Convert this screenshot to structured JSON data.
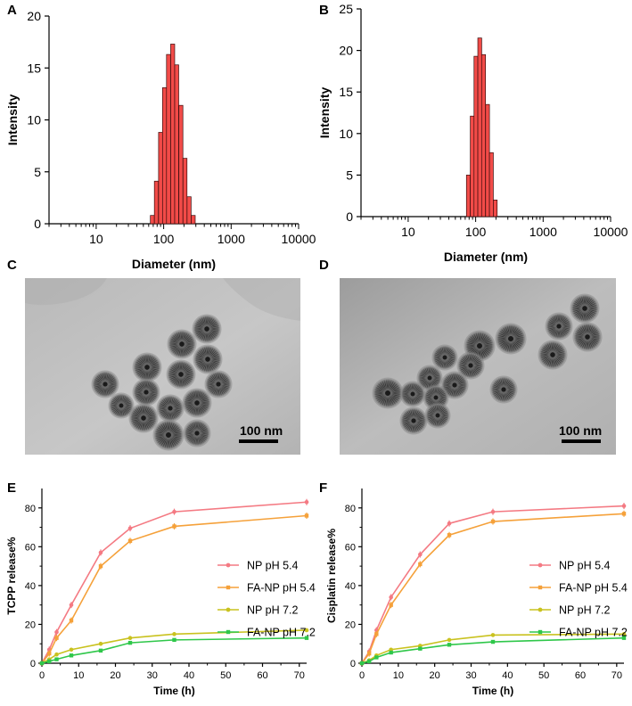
{
  "panels": {
    "A": "A",
    "B": "B",
    "C": "C",
    "D": "D",
    "E": "E",
    "F": "F"
  },
  "tem": {
    "C": {
      "scale_bar_label": "100 nm"
    },
    "D": {
      "scale_bar_label": "100 nm"
    }
  },
  "colors": {
    "bar_fill": "#f24b48",
    "bar_stroke": "#3a0c0c",
    "np_54": "#f47a83",
    "fa_np_54": "#f5a13a",
    "np_72": "#c9c21f",
    "fa_np_72": "#2fc74a"
  },
  "chart_data": [
    {
      "panel": "A",
      "type": "bar",
      "xscale": "log",
      "xlabel": "Diameter (nm)",
      "ylabel": "Intensity",
      "xlim": [
        2,
        10000
      ],
      "ylim": [
        0,
        20
      ],
      "xticks": [
        "10",
        "100",
        "1000",
        "10000"
      ],
      "yticks": [
        "0",
        "5",
        "10",
        "15",
        "20"
      ],
      "bins": [
        {
          "x": 68,
          "y": 0.8
        },
        {
          "x": 78,
          "y": 4.1
        },
        {
          "x": 90,
          "y": 8.8
        },
        {
          "x": 103,
          "y": 13.1
        },
        {
          "x": 118,
          "y": 16.3
        },
        {
          "x": 136,
          "y": 17.3
        },
        {
          "x": 156,
          "y": 15.3
        },
        {
          "x": 180,
          "y": 11.4
        },
        {
          "x": 207,
          "y": 6.3
        },
        {
          "x": 238,
          "y": 2.6
        },
        {
          "x": 274,
          "y": 0.8
        }
      ]
    },
    {
      "panel": "B",
      "type": "bar",
      "xscale": "log",
      "xlabel": "Diameter (nm)",
      "ylabel": "Intensity",
      "xlim": [
        2,
        10000
      ],
      "ylim": [
        0,
        25
      ],
      "xticks": [
        "10",
        "100",
        "1000",
        "10000"
      ],
      "yticks": [
        "0",
        "5",
        "10",
        "15",
        "20",
        "25"
      ],
      "bins": [
        {
          "x": 78,
          "y": 5.0
        },
        {
          "x": 89,
          "y": 12.1
        },
        {
          "x": 101,
          "y": 19.3
        },
        {
          "x": 115,
          "y": 21.5
        },
        {
          "x": 131,
          "y": 19.5
        },
        {
          "x": 150,
          "y": 13.5
        },
        {
          "x": 171,
          "y": 7.7
        },
        {
          "x": 195,
          "y": 2.0
        }
      ]
    },
    {
      "panel": "E",
      "type": "line",
      "xlabel": "Time (h)",
      "ylabel": "TCPP release%",
      "xlim": [
        0,
        72
      ],
      "ylim": [
        0,
        90
      ],
      "xticks": [
        "0",
        "10",
        "20",
        "30",
        "40",
        "50",
        "60",
        "70"
      ],
      "yticks": [
        "0",
        "20",
        "40",
        "60",
        "80"
      ],
      "x": [
        0,
        2,
        4,
        8,
        16,
        24,
        36,
        72
      ],
      "series": [
        {
          "name": "NP pH 5.4",
          "values": [
            0,
            7,
            16,
            30,
            57,
            69.5,
            78,
            83
          ]
        },
        {
          "name": "FA-NP pH 5.4",
          "values": [
            0,
            5,
            13,
            22,
            50,
            63,
            70.5,
            76
          ]
        },
        {
          "name": "NP pH 7.2",
          "values": [
            0,
            2,
            4.5,
            7,
            10,
            13,
            15,
            17
          ]
        },
        {
          "name": "FA-NP pH 7.2",
          "values": [
            0,
            1,
            2,
            4,
            6.5,
            10.5,
            12,
            13
          ]
        }
      ]
    },
    {
      "panel": "F",
      "type": "line",
      "xlabel": "Time (h)",
      "ylabel": "Cisplatin release%",
      "xlim": [
        0,
        72
      ],
      "ylim": [
        0,
        90
      ],
      "xticks": [
        "0",
        "10",
        "20",
        "30",
        "40",
        "50",
        "60",
        "70"
      ],
      "yticks": [
        "0",
        "20",
        "40",
        "60",
        "80"
      ],
      "x": [
        0,
        2,
        4,
        8,
        16,
        24,
        36,
        72
      ],
      "series": [
        {
          "name": "NP pH 5.4",
          "values": [
            0,
            6,
            17,
            34,
            56,
            72,
            78,
            81
          ]
        },
        {
          "name": "FA-NP pH 5.4",
          "values": [
            0,
            5,
            15,
            30,
            51,
            66,
            73,
            77
          ]
        },
        {
          "name": "NP pH 7.2",
          "values": [
            0,
            1.5,
            4,
            7,
            9,
            12,
            14.5,
            15
          ]
        },
        {
          "name": "FA-NP pH 7.2",
          "values": [
            0,
            1,
            3,
            5.5,
            7.5,
            9.5,
            11,
            13
          ]
        }
      ]
    }
  ]
}
